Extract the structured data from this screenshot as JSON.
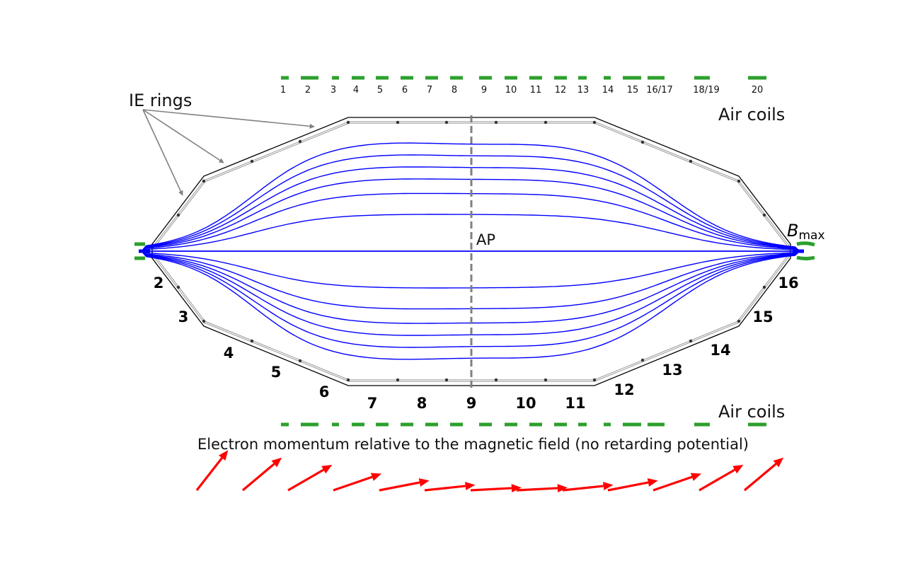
{
  "labels": {
    "ie_rings": "IE rings",
    "air_coils_top": "Air coils",
    "air_coils_bottom": "Air coils",
    "analyzing_plane": "AP",
    "bmax_symbol": "B",
    "bmax_subscript": "max",
    "caption": "Electron momentum relative to the magnetic field (no retarding potential)"
  },
  "air_coil_numbers": [
    "1",
    "2",
    "3",
    "4",
    "5",
    "6",
    "7",
    "8",
    "9",
    "10",
    "11",
    "12",
    "13",
    "14",
    "15",
    "16/17",
    "18/19",
    "20"
  ],
  "ring_numbers": [
    "2",
    "3",
    "4",
    "5",
    "6",
    "7",
    "8",
    "9",
    "10",
    "11",
    "12",
    "13",
    "14",
    "15",
    "16"
  ],
  "momentum_arrow_angles_deg": [
    52,
    40,
    30,
    19,
    11,
    6,
    3,
    3,
    6,
    11,
    19,
    30,
    40,
    52
  ],
  "field_line_extents": [
    -0.225,
    -0.355,
    -0.445,
    -0.52,
    -0.595,
    -0.67,
    0.0,
    0.225,
    0.355,
    0.445,
    0.52,
    0.595,
    0.67
  ],
  "colors": {
    "air_coils": "#2ca02c",
    "field_lines": "#0000ff",
    "momentum_arrows": "#ff0000",
    "vessel": "#000000",
    "pointer_arrows": "#808080",
    "analyzing_plane": "#808080"
  }
}
